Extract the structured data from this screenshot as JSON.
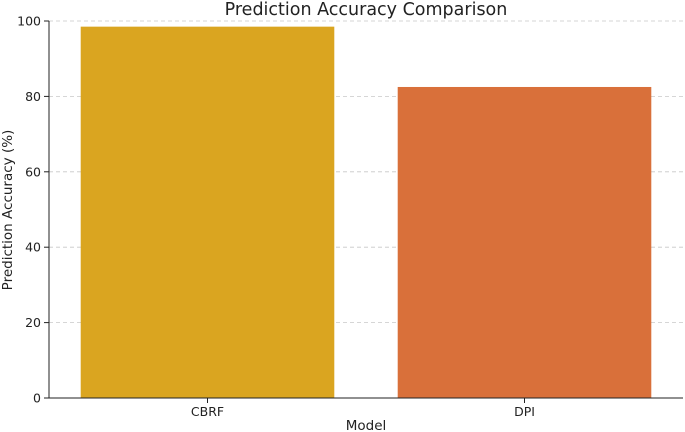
{
  "chart_data": {
    "type": "bar",
    "title": "Prediction Accuracy Comparison",
    "xlabel": "Model",
    "ylabel": "Prediction Accuracy (%)",
    "categories": [
      "CBRF",
      "DPI"
    ],
    "values": [
      98.5,
      82.5
    ],
    "colors": [
      "#DAA520",
      "#D9703A"
    ],
    "ylim": [
      0,
      100
    ],
    "yticks": [
      0,
      20,
      40,
      60,
      80,
      100
    ],
    "grid": true,
    "legend": "none"
  }
}
